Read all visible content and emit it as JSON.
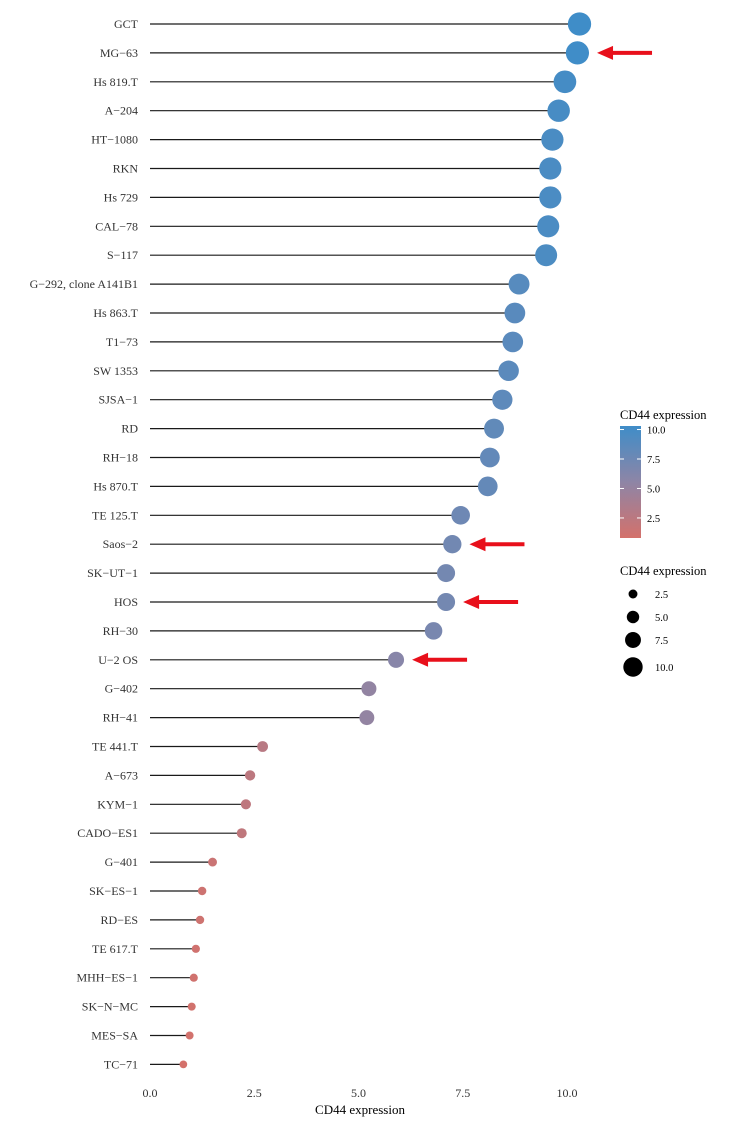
{
  "chart_data": {
    "type": "lollipop",
    "xlabel": "CD44 expression",
    "xlim": [
      0,
      10.5
    ],
    "xticks": [
      "0.0",
      "2.5",
      "5.0",
      "7.5",
      "10.0"
    ],
    "grid": false,
    "categories": [
      "GCT",
      "MG−63",
      "Hs 819.T",
      "A−204",
      "HT−1080",
      "RKN",
      "Hs 729",
      "CAL−78",
      "S−117",
      "G−292, clone A141B1",
      "Hs 863.T",
      "T1−73",
      "SW 1353",
      "SJSA−1",
      "RD",
      "RH−18",
      "Hs 870.T",
      "TE 125.T",
      "Saos−2",
      "SK−UT−1",
      "HOS",
      "RH−30",
      "U−2 OS",
      "G−402",
      "RH−41",
      "TE 441.T",
      "A−673",
      "KYM−1",
      "CADO−ES1",
      "G−401",
      "SK−ES−1",
      "RD−ES",
      "TE 617.T",
      "MHH−ES−1",
      "SK−N−MC",
      "MES−SA",
      "TC−71"
    ],
    "values": [
      10.3,
      10.25,
      9.95,
      9.8,
      9.65,
      9.6,
      9.6,
      9.55,
      9.5,
      8.85,
      8.75,
      8.7,
      8.6,
      8.45,
      8.25,
      8.15,
      8.1,
      7.45,
      7.25,
      7.1,
      7.1,
      6.8,
      5.9,
      5.25,
      5.2,
      2.7,
      2.4,
      2.3,
      2.2,
      1.5,
      1.25,
      1.2,
      1.1,
      1.05,
      1.0,
      0.95,
      0.8
    ],
    "highlighted": [
      "MG−63",
      "Saos−2",
      "HOS",
      "U−2 OS"
    ],
    "highlight_color": "#e8101b",
    "color_scale": {
      "low": "#d4716b",
      "mid": "#8e85a6",
      "high": "#3f8dc8"
    },
    "legend_color": {
      "title": "CD44 expression",
      "ticks": [
        "10.0",
        "7.5",
        "5.0",
        "2.5"
      ],
      "tick_values": [
        10,
        7.5,
        5,
        2.5
      ],
      "range": [
        0.8,
        10.3
      ]
    },
    "legend_size": {
      "title": "CD44 expression",
      "labels": [
        "2.5",
        "5.0",
        "7.5",
        "10.0"
      ],
      "values": [
        2.5,
        5,
        7.5,
        10
      ]
    },
    "legend_placement": "right"
  }
}
